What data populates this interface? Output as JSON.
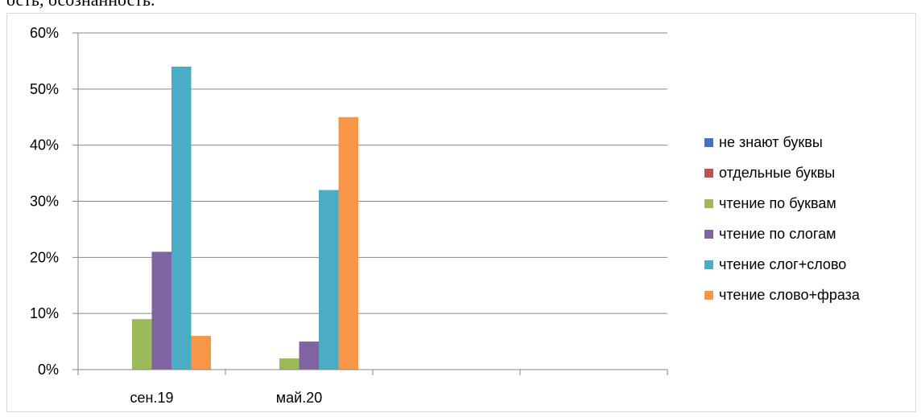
{
  "header_text": "ость, осознанность.",
  "chart_data": {
    "type": "bar",
    "categories": [
      "сен.19",
      "май.20",
      "",
      ""
    ],
    "series": [
      {
        "name": "не знают буквы",
        "color": "#4472C4",
        "values": [
          0,
          0,
          0,
          0
        ]
      },
      {
        "name": "отдельные буквы",
        "color": "#C0504D",
        "values": [
          0,
          0,
          0,
          0
        ]
      },
      {
        "name": "чтение по буквам",
        "color": "#9BBB59",
        "values": [
          9,
          2,
          0,
          0
        ]
      },
      {
        "name": "чтение по слогам",
        "color": "#8064A2",
        "values": [
          21,
          5,
          0,
          0
        ]
      },
      {
        "name": "чтение слог+слово",
        "color": "#4BACC6",
        "values": [
          54,
          32,
          0,
          0
        ]
      },
      {
        "name": "чтение слово+фраза",
        "color": "#F79646",
        "values": [
          6,
          45,
          0,
          0
        ]
      }
    ],
    "y_ticks": [
      "0%",
      "10%",
      "20%",
      "30%",
      "40%",
      "50%",
      "60%"
    ],
    "ylim": [
      0,
      60
    ],
    "grid": true,
    "legend": "right"
  }
}
